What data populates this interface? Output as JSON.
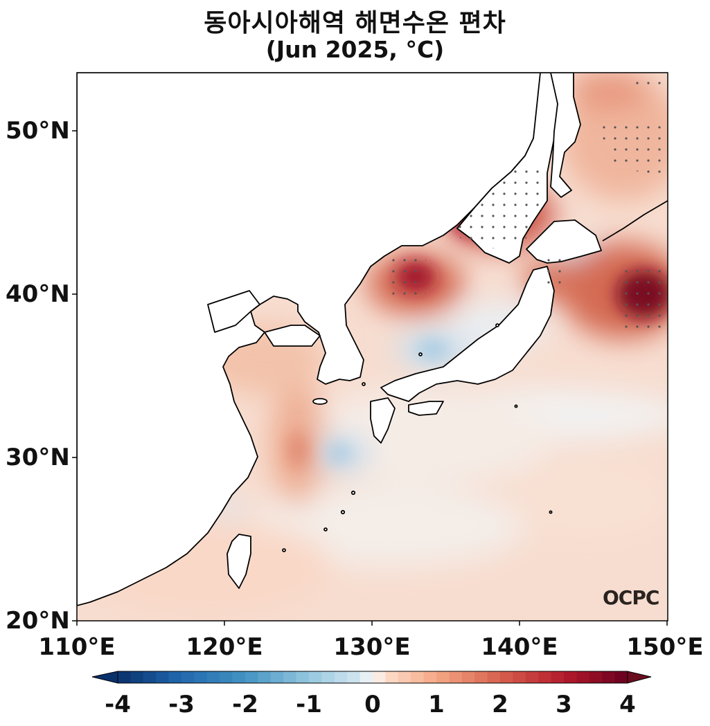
{
  "title": {
    "line1": "동아시아해역 해면수온 편차",
    "line2": "(Jun 2025, °C)"
  },
  "axes": {
    "lat_ticks": [
      "50°N",
      "40°N",
      "30°N",
      "20°N"
    ],
    "lon_ticks": [
      "110°E",
      "120°E",
      "130°E",
      "140°E",
      "150°E"
    ],
    "lon_range": [
      110,
      150
    ],
    "lat_range": [
      20,
      53.5
    ]
  },
  "colorbar": {
    "ticks": [
      "-4",
      "-3",
      "-2",
      "-1",
      "0",
      "1",
      "2",
      "3",
      "4"
    ],
    "min": -4,
    "max": 4,
    "extend": "both",
    "colormap": "RdBu_r"
  },
  "logo_text": "OCPC",
  "colors": {
    "land": "#ffffff",
    "coast": "#000000",
    "warm_strong": "#8b0e26",
    "warm": "#e08068",
    "warm_light": "#f6d2bf",
    "neutral": "#f4f2f0",
    "cool_light": "#d6e6f0",
    "cool": "#9fc4de"
  }
}
